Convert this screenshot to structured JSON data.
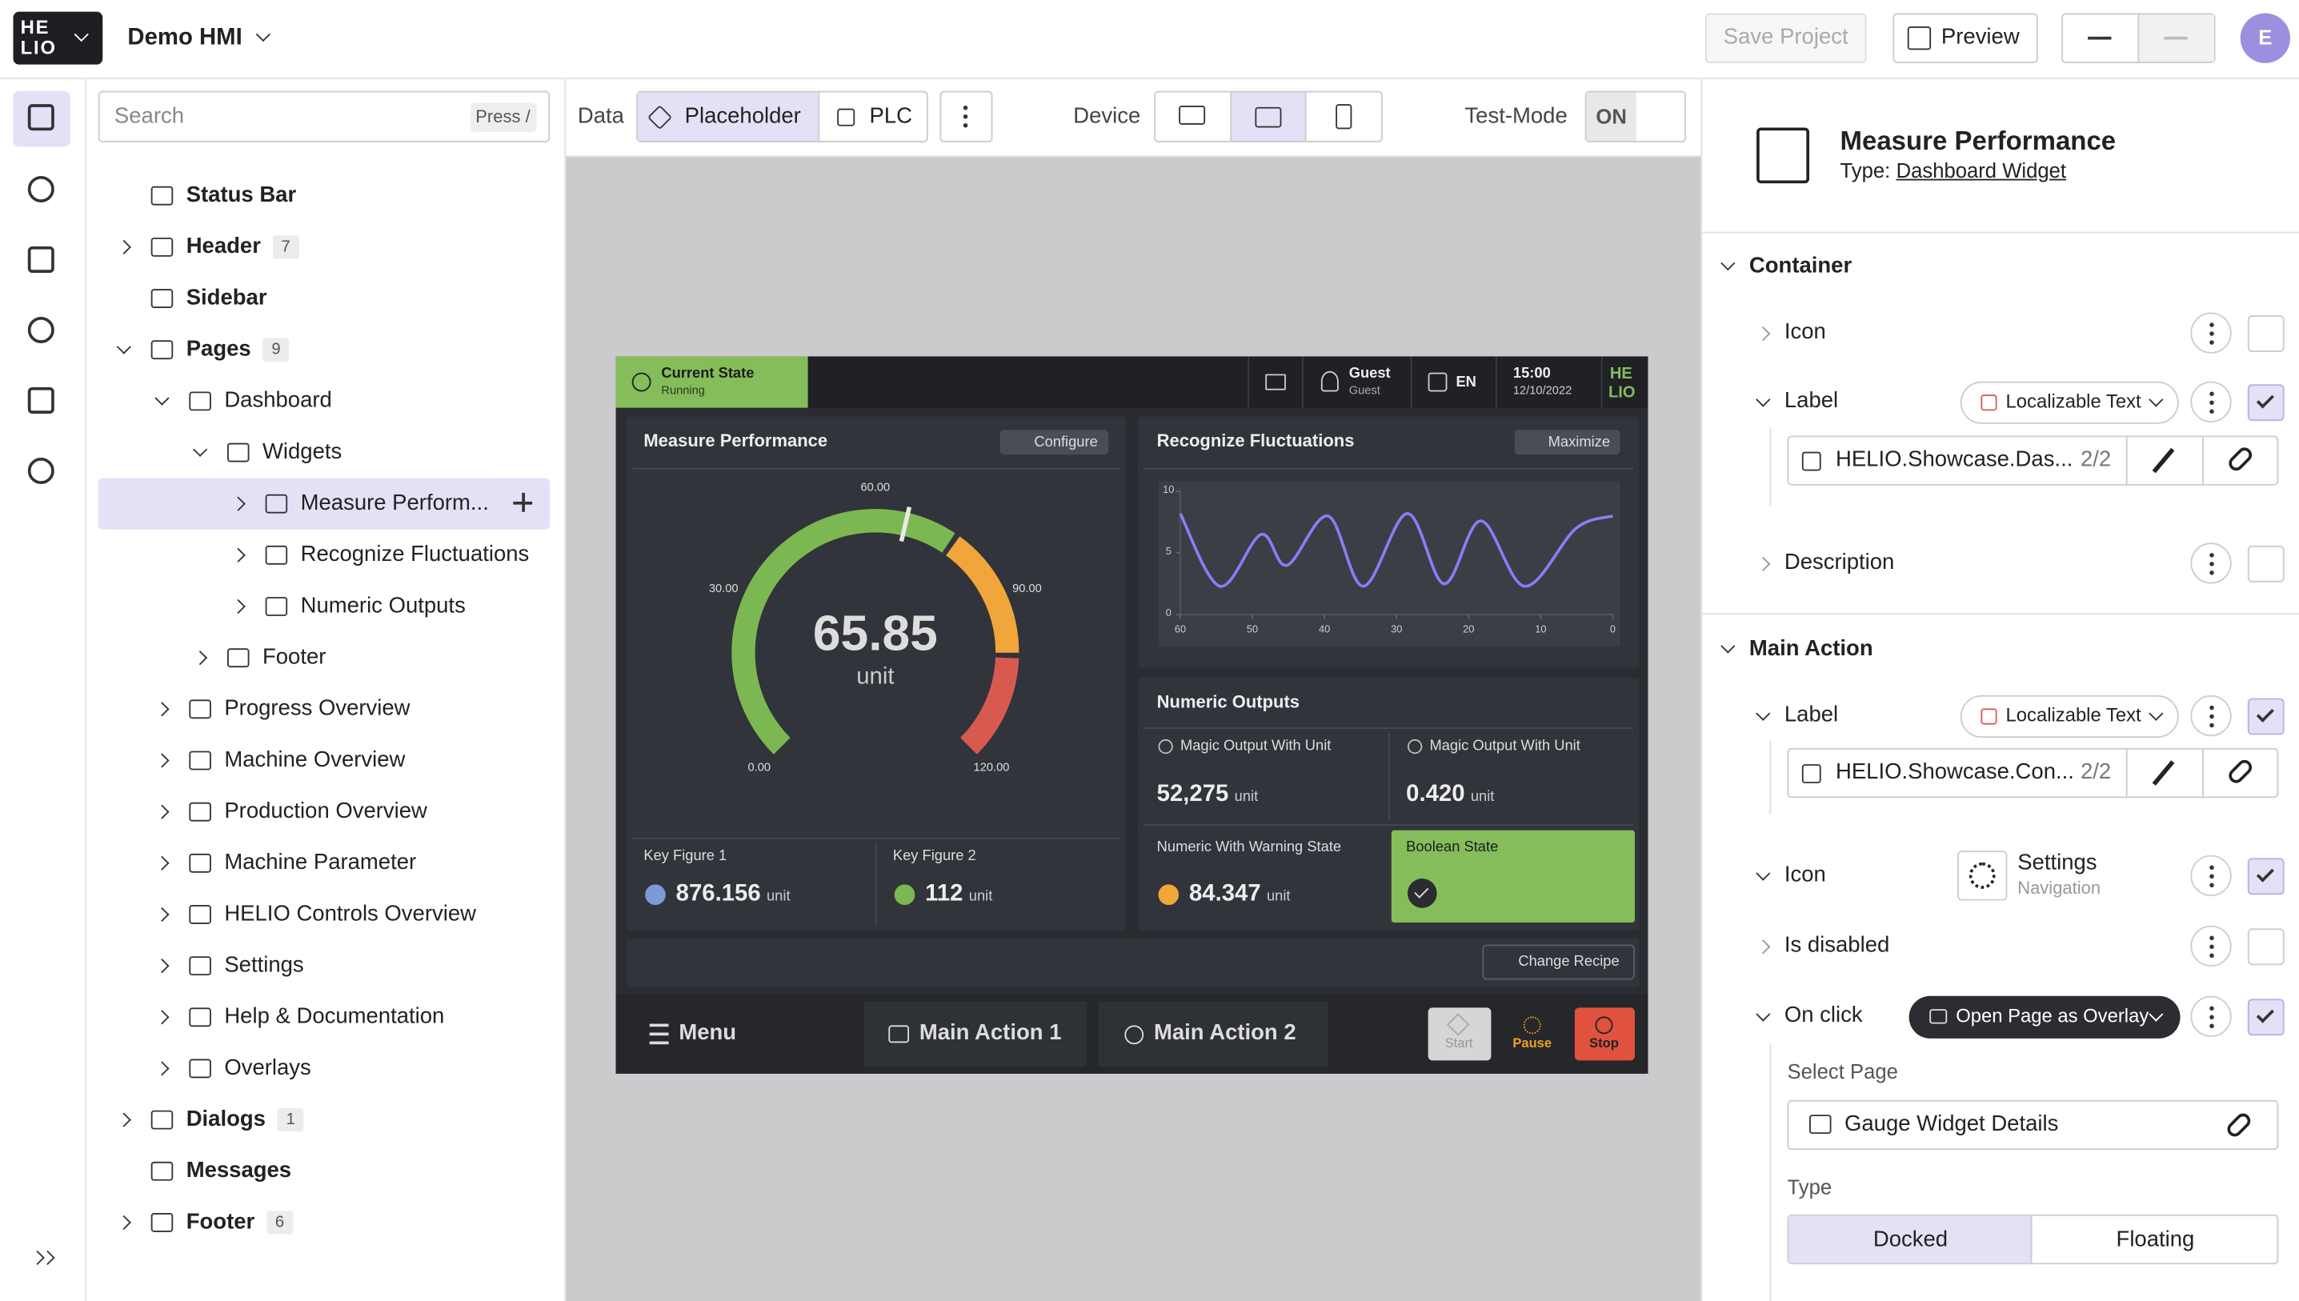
{
  "topbar": {
    "logo": [
      "HE",
      "LIO"
    ],
    "project": "Demo HMI",
    "save": "Save Project",
    "preview": "Preview",
    "avatar": "E"
  },
  "explorer": {
    "search": "Search",
    "shortcut": "Press /",
    "items": [
      {
        "label": "Status Bar"
      },
      {
        "label": "Header",
        "count": 7
      },
      {
        "label": "Sidebar"
      },
      {
        "label": "Pages",
        "count": 9
      },
      {
        "label": "Dashboard"
      },
      {
        "label": "Widgets"
      },
      {
        "label": "Measure Perform..."
      },
      {
        "label": "Recognize Fluctuations"
      },
      {
        "label": "Numeric Outputs"
      },
      {
        "label": "Footer"
      },
      {
        "label": "Progress Overview"
      },
      {
        "label": "Machine Overview"
      },
      {
        "label": "Production Overview"
      },
      {
        "label": "Machine Parameter"
      },
      {
        "label": "HELIO Controls Overview"
      },
      {
        "label": "Settings"
      },
      {
        "label": "Help & Documentation"
      },
      {
        "label": "Overlays"
      },
      {
        "label": "Dialogs",
        "count": 1
      },
      {
        "label": "Messages"
      },
      {
        "label": "Footer",
        "count": 6
      }
    ]
  },
  "toolbar": {
    "data": "Data",
    "placeholder": "Placeholder",
    "plc": "PLC",
    "device": "Device",
    "test_mode": "Test-Mode",
    "toggle": "ON"
  },
  "hmi": {
    "status": {
      "state": "Current State",
      "state_value": "Running",
      "user": "Guest",
      "role": "Guest",
      "language": "EN",
      "time": "15:00",
      "date": "12/10/2022",
      "logo": [
        "HE",
        "LIO"
      ]
    },
    "gauge_card": {
      "title": "Measure Performance",
      "action": "Configure",
      "value": 65.85,
      "unit": "unit",
      "min": 0,
      "max": 120,
      "ticks": [
        {
          "value": 0,
          "label": "0.00"
        },
        {
          "value": 30,
          "label": "30.00"
        },
        {
          "value": 60,
          "label": "60.00"
        },
        {
          "value": 90,
          "label": "90.00"
        },
        {
          "value": 120,
          "label": "120.00"
        }
      ],
      "zones": [
        {
          "from": 0,
          "to": 75,
          "color": "#7cb851"
        },
        {
          "from": 76,
          "to": 100,
          "color": "#f0a63a"
        },
        {
          "from": 101,
          "to": 120,
          "color": "#d85a4f"
        }
      ],
      "key_figures": [
        {
          "label": "Key Figure 1",
          "value": "876.156",
          "unit": "unit"
        },
        {
          "label": "Key Figure 2",
          "value": "112",
          "unit": "unit"
        }
      ]
    },
    "chart_card": {
      "title": "Recognize Fluctuations",
      "action": "Maximize",
      "xlim": [
        60,
        0
      ],
      "ylim": [
        0,
        10
      ],
      "xticks": [
        60,
        50,
        40,
        30,
        20,
        10,
        0
      ],
      "yticks": [
        0,
        5,
        10
      ],
      "x": [
        60,
        54.5,
        48.8,
        45.2,
        39.5,
        34.6,
        28.5,
        23.4,
        18.3,
        12.2,
        5.1,
        0
      ],
      "values": [
        8.2,
        2.3,
        6.5,
        4,
        8,
        2.3,
        8.2,
        2.5,
        7.6,
        2.3,
        7,
        8
      ],
      "color": "#8b7cf6"
    },
    "numeric_card": {
      "title": "Numeric Outputs",
      "outputs": [
        {
          "label": "Magic Output With Unit",
          "value": "52,275",
          "unit": "unit"
        },
        {
          "label": "Magic Output With Unit",
          "value": "0.420",
          "unit": "unit"
        },
        {
          "label": "Numeric With Warning State",
          "value": "84.347",
          "unit": "unit"
        },
        {
          "label": "Boolean State"
        }
      ]
    },
    "recipe": "Change Recipe",
    "footer": {
      "menu": "Menu",
      "actions": [
        "Main Action 1",
        "Main Action 2"
      ],
      "controls": [
        "Start",
        "Pause",
        "Stop"
      ]
    }
  },
  "properties": {
    "title": "Measure Performance",
    "type_label": "Type:",
    "type": "Dashboard Widget",
    "container": {
      "heading": "Container",
      "icon": "Icon",
      "label": "Label",
      "label_kind": "Localizable Text",
      "label_key": "HELIO.Showcase.Das...",
      "label_count": "2/2",
      "description": "Description"
    },
    "main_action": {
      "heading": "Main Action",
      "label": "Label",
      "label_kind": "Localizable Text",
      "label_key": "HELIO.Showcase.Con...",
      "label_count": "2/2",
      "icon": "Icon",
      "icon_name": "Settings",
      "icon_group": "Navigation",
      "disabled": "Is disabled",
      "on_click": "On click",
      "on_click_action": "Open Page as Overlay",
      "select_page": "Select Page",
      "page": "Gauge Widget Details",
      "type": "Type",
      "type_options": [
        "Docked",
        "Floating"
      ]
    }
  }
}
